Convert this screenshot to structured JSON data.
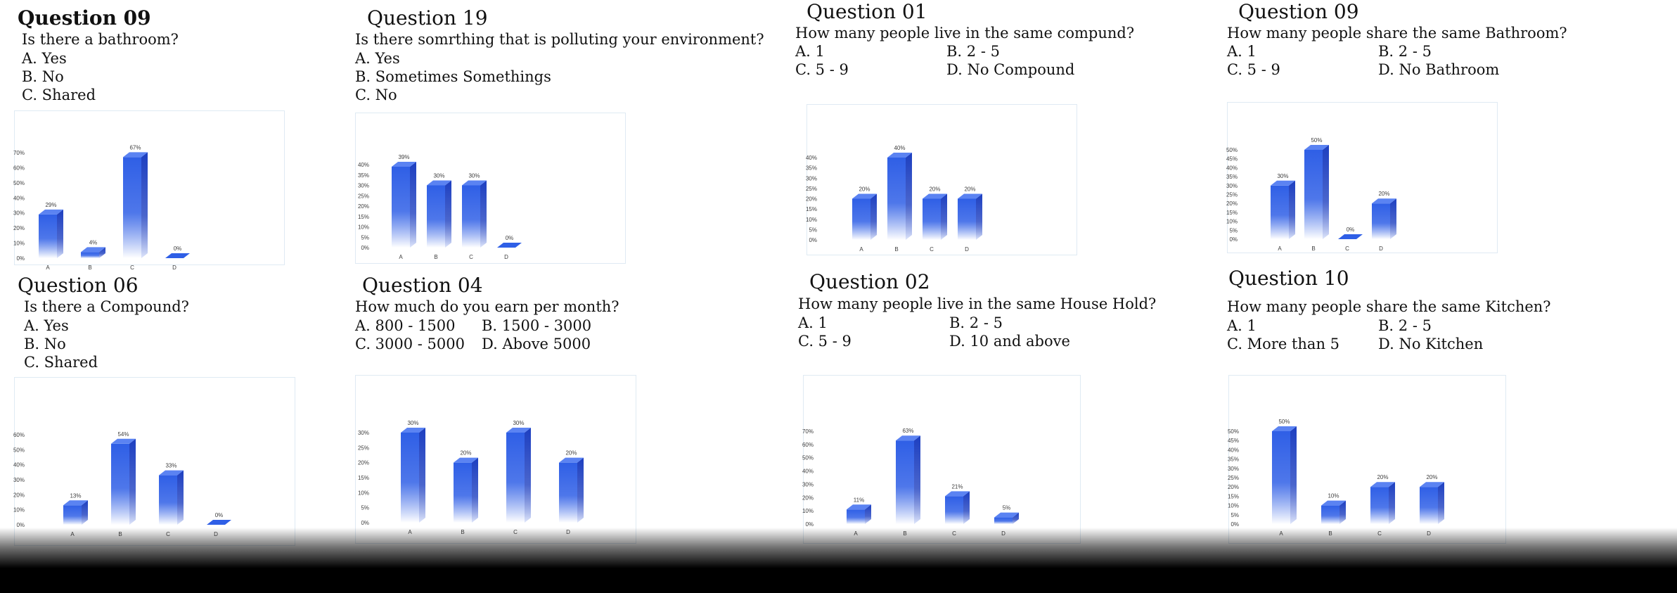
{
  "questions": [
    {
      "id": "q09a",
      "title": "Question 09",
      "question": "Is there a bathroom?",
      "options": [
        "A. Yes",
        "B. No",
        "C. Shared"
      ],
      "columns": 1
    },
    {
      "id": "q19",
      "title": "Question 19",
      "question": "Is there somrthing that is polluting your environment?",
      "options": [
        "A. Yes",
        "B.  Sometimes Somethings",
        "C. No"
      ],
      "columns": 1
    },
    {
      "id": "q01",
      "title": "Question 01",
      "question": "How many people live in the same compund?",
      "options": [
        "A. 1",
        "B.  2 - 5",
        "C. 5 - 9",
        "D. No Compound"
      ],
      "columns": 2
    },
    {
      "id": "q09b",
      "title": "Question 09",
      "question": "How many people share the same Bathroom?",
      "options": [
        "A. 1",
        "B.  2 - 5",
        "C. 5 - 9",
        "D. No Bathroom"
      ],
      "columns": 2
    },
    {
      "id": "q06",
      "title": "Question 06",
      "question": "Is there a Compound?",
      "options": [
        "A. Yes",
        "B. No",
        "C. Shared"
      ],
      "columns": 1
    },
    {
      "id": "q04",
      "title": "Question 04",
      "question": "How much do you earn per month?",
      "options": [
        "A. 800 - 1500",
        "B.  1500 - 3000",
        "C. 3000 - 5000",
        "D. Above 5000"
      ],
      "columns": 2
    },
    {
      "id": "q02",
      "title": "Question 02",
      "question": "How many people live in the same House Hold?",
      "options": [
        "A. 1",
        "B.  2 - 5",
        "C. 5 - 9",
        "D. 10 and above"
      ],
      "columns": 2
    },
    {
      "id": "q10",
      "title": "Question 10",
      "question": "How many people share the same Kitchen?",
      "options": [
        "A. 1",
        "B.  2 - 5",
        "C. More than 5",
        "D. No Kitchen"
      ],
      "columns": 2
    }
  ],
  "colors": {
    "bar_front": "#2f5fe6",
    "bar_side": "#1d3fc0",
    "bar_top": "#5b83f2",
    "axis_text": "#3c3c3c",
    "frame": "#dfeaf3"
  },
  "chart_data": [
    {
      "type": "bar",
      "question": "Question 09",
      "categories": [
        "A",
        "B",
        "C",
        "D"
      ],
      "values": [
        29,
        4,
        67,
        0
      ],
      "data_labels": [
        "29%",
        "4%",
        "67%",
        "0%"
      ],
      "yticks": [
        "0%",
        "10%",
        "20%",
        "30%",
        "40%",
        "50%",
        "60%",
        "70%"
      ],
      "ylim": [
        0,
        70
      ]
    },
    {
      "type": "bar",
      "question": "Question 19",
      "categories": [
        "A",
        "B",
        "C",
        "D"
      ],
      "values": [
        39,
        30,
        30,
        0
      ],
      "data_labels": [
        "39%",
        "30%",
        "30%",
        "0%"
      ],
      "yticks": [
        "0%",
        "5%",
        "10%",
        "15%",
        "20%",
        "25%",
        "30%",
        "35%",
        "40%"
      ],
      "ylim": [
        0,
        40
      ]
    },
    {
      "type": "bar",
      "question": "Question 01",
      "categories": [
        "A",
        "B",
        "C",
        "D"
      ],
      "values": [
        20,
        40,
        20,
        20
      ],
      "data_labels": [
        "20%",
        "40%",
        "20%",
        "20%"
      ],
      "yticks": [
        "0%",
        "5%",
        "10%",
        "15%",
        "20%",
        "25%",
        "30%",
        "35%",
        "40%"
      ],
      "ylim": [
        0,
        40
      ]
    },
    {
      "type": "bar",
      "question": "Question 09",
      "categories": [
        "A",
        "B",
        "C",
        "D"
      ],
      "values": [
        30,
        50,
        0,
        20
      ],
      "data_labels": [
        "30%",
        "50%",
        "0%",
        "20%"
      ],
      "yticks": [
        "0%",
        "5%",
        "10%",
        "15%",
        "20%",
        "25%",
        "30%",
        "35%",
        "40%",
        "45%",
        "50%"
      ],
      "ylim": [
        0,
        50
      ]
    },
    {
      "type": "bar",
      "question": "Question 06",
      "categories": [
        "A",
        "B",
        "C",
        "D"
      ],
      "values": [
        13,
        54,
        33,
        0
      ],
      "data_labels": [
        "13%",
        "54%",
        "33%",
        "0%"
      ],
      "yticks": [
        "0%",
        "10%",
        "20%",
        "30%",
        "40%",
        "50%",
        "60%"
      ],
      "ylim": [
        0,
        60
      ]
    },
    {
      "type": "bar",
      "question": "Question 04",
      "categories": [
        "A",
        "B",
        "C",
        "D"
      ],
      "values": [
        30,
        20,
        30,
        20
      ],
      "data_labels": [
        "30%",
        "20%",
        "30%",
        "20%"
      ],
      "yticks": [
        "0%",
        "5%",
        "10%",
        "15%",
        "20%",
        "25%",
        "30%"
      ],
      "ylim": [
        0,
        30
      ]
    },
    {
      "type": "bar",
      "question": "Question 02",
      "categories": [
        "A",
        "B",
        "C",
        "D"
      ],
      "values": [
        11,
        63,
        21,
        5
      ],
      "data_labels": [
        "11%",
        "63%",
        "21%",
        "5%"
      ],
      "yticks": [
        "0%",
        "10%",
        "20%",
        "30%",
        "40%",
        "50%",
        "60%",
        "70%"
      ],
      "ylim": [
        0,
        70
      ]
    },
    {
      "type": "bar",
      "question": "Question 10",
      "categories": [
        "A",
        "B",
        "C",
        "D"
      ],
      "values": [
        50,
        10,
        20,
        20
      ],
      "data_labels": [
        "50%",
        "10%",
        "20%",
        "20%"
      ],
      "yticks": [
        "0%",
        "5%",
        "10%",
        "15%",
        "20%",
        "25%",
        "30%",
        "35%",
        "40%",
        "45%",
        "50%"
      ],
      "ylim": [
        0,
        50
      ]
    }
  ]
}
